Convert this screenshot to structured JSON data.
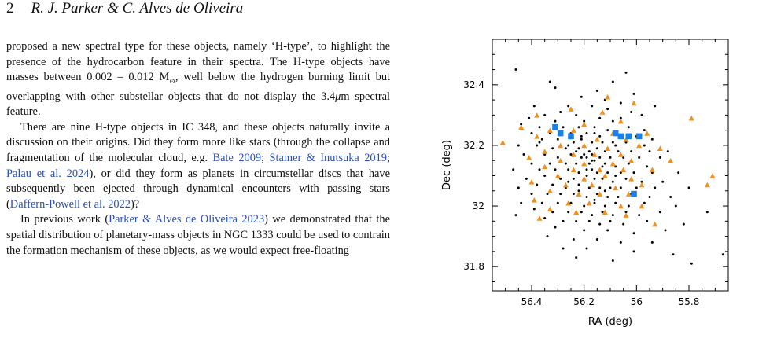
{
  "header": {
    "page_number": "2",
    "authors": "R. J. Parker & C. Alves de Oliveira"
  },
  "body": {
    "p1": [
      {
        "t": "proposed a new spectral type for these objects, namely ‘H-type’, to highlight the presence of the hydrocarbon feature in their spectra. The H-type objects have masses between 0.002 – 0.012 M"
      },
      {
        "t": "⊙",
        "sub": true
      },
      {
        "t": ", well below the hydrogen burning limit but overlapping with other substellar objects that do not display the 3.4"
      },
      {
        "t": "μ",
        "em": true
      },
      {
        "t": "m spectral feature."
      }
    ],
    "p2": [
      {
        "t": "There are nine H-type objects in IC 348, and these objects naturally invite a discussion on their origins. Did they form more like stars (through the collapse and fragmentation of the molecular cloud, e.g. "
      },
      {
        "t": "Bate 2009",
        "link": true
      },
      {
        "t": "; "
      },
      {
        "t": "Stamer & Inutsuka 2019",
        "link": true
      },
      {
        "t": "; "
      },
      {
        "t": "Palau et al. 2024",
        "link": true
      },
      {
        "t": "), or did they form as planets in circumstellar discs that have subsequently been ejected through dynamical encounters with passing stars ("
      },
      {
        "t": "Daffern-Powell et al. 2022",
        "link": true
      },
      {
        "t": ")?"
      }
    ],
    "p3": [
      {
        "t": "In previous work ("
      },
      {
        "t": "Parker & Alves de Oliveira 2023",
        "link": true
      },
      {
        "t": ") we demonstrated that the spatial distribution of planetary-mass objects in NGC 1333 could be used to contrain the formation mechanism of these objects, as we would expect free-floating"
      }
    ]
  },
  "chart_data": {
    "type": "scatter",
    "title": "",
    "xlabel": "RA (deg)",
    "ylabel": "Dec (deg)",
    "xlim": [
      56.55,
      55.65
    ],
    "ylim": [
      31.72,
      32.55
    ],
    "x_inverted": true,
    "xticks": [
      56.4,
      56.2,
      56.0,
      55.8
    ],
    "xtick_labels": [
      "56.4",
      "56.2",
      "56",
      "55.8"
    ],
    "yticks": [
      31.8,
      32.0,
      32.2,
      32.4
    ],
    "ytick_labels": [
      "31.8",
      "32",
      "32.2",
      "32.4"
    ],
    "grid": false,
    "legend": "none",
    "series": [
      {
        "marker": "dot",
        "color": "#000000",
        "points": [
          [
            56.46,
            32.45
          ],
          [
            56.33,
            32.41
          ],
          [
            56.04,
            32.44
          ],
          [
            56.09,
            32.41
          ],
          [
            56.31,
            32.39
          ],
          [
            56.15,
            32.38
          ],
          [
            56.01,
            32.37
          ],
          [
            56.21,
            32.36
          ],
          [
            56.12,
            32.35
          ],
          [
            56.06,
            32.34
          ],
          [
            56.39,
            32.33
          ],
          [
            56.26,
            32.33
          ],
          [
            56.17,
            32.33
          ],
          [
            55.93,
            32.33
          ],
          [
            56.29,
            32.31
          ],
          [
            56.11,
            32.32
          ],
          [
            56.02,
            32.31
          ],
          [
            56.41,
            32.29
          ],
          [
            56.35,
            32.3
          ],
          [
            56.23,
            32.3
          ],
          [
            56.14,
            32.29
          ],
          [
            56.06,
            32.29
          ],
          [
            55.98,
            32.3
          ],
          [
            56.31,
            32.28
          ],
          [
            56.2,
            32.28
          ],
          [
            56.09,
            32.28
          ],
          [
            56.44,
            32.27
          ],
          [
            56.37,
            32.26
          ],
          [
            56.28,
            32.26
          ],
          [
            56.22,
            32.26
          ],
          [
            56.16,
            32.26
          ],
          [
            56.11,
            32.25
          ],
          [
            56.03,
            32.26
          ],
          [
            55.97,
            32.25
          ],
          [
            56.4,
            32.24
          ],
          [
            56.33,
            32.24
          ],
          [
            56.25,
            32.24
          ],
          [
            56.19,
            32.24
          ],
          [
            56.14,
            32.23
          ],
          [
            56.06,
            32.23
          ],
          [
            56.0,
            32.23
          ],
          [
            55.94,
            32.22
          ],
          [
            56.36,
            32.22
          ],
          [
            56.3,
            32.22
          ],
          [
            56.24,
            32.21
          ],
          [
            56.21,
            32.22
          ],
          [
            56.17,
            32.21
          ],
          [
            56.13,
            32.21
          ],
          [
            56.09,
            32.21
          ],
          [
            56.04,
            32.21
          ],
          [
            55.97,
            32.2
          ],
          [
            56.45,
            32.2
          ],
          [
            56.38,
            32.2
          ],
          [
            56.32,
            32.19
          ],
          [
            56.27,
            32.19
          ],
          [
            56.22,
            32.19
          ],
          [
            56.2,
            32.2
          ],
          [
            56.18,
            32.18
          ],
          [
            56.15,
            32.19
          ],
          [
            56.11,
            32.19
          ],
          [
            56.07,
            32.18
          ],
          [
            56.02,
            32.18
          ],
          [
            55.95,
            32.18
          ],
          [
            55.88,
            32.18
          ],
          [
            56.43,
            32.17
          ],
          [
            56.35,
            32.17
          ],
          [
            56.3,
            32.16
          ],
          [
            56.25,
            32.17
          ],
          [
            56.21,
            32.16
          ],
          [
            56.19,
            32.16
          ],
          [
            56.17,
            32.17
          ],
          [
            56.14,
            32.16
          ],
          [
            56.1,
            32.16
          ],
          [
            56.05,
            32.16
          ],
          [
            55.99,
            32.16
          ],
          [
            55.91,
            32.16
          ],
          [
            56.4,
            32.14
          ],
          [
            56.33,
            32.14
          ],
          [
            56.27,
            32.14
          ],
          [
            56.23,
            32.14
          ],
          [
            56.2,
            32.14
          ],
          [
            56.18,
            32.14
          ],
          [
            56.16,
            32.15
          ],
          [
            56.12,
            32.14
          ],
          [
            56.08,
            32.13
          ],
          [
            56.03,
            32.14
          ],
          [
            55.96,
            32.13
          ],
          [
            56.47,
            32.12
          ],
          [
            56.37,
            32.12
          ],
          [
            56.31,
            32.12
          ],
          [
            56.26,
            32.12
          ],
          [
            56.22,
            32.11
          ],
          [
            56.19,
            32.12
          ],
          [
            56.17,
            32.12
          ],
          [
            56.15,
            32.11
          ],
          [
            56.11,
            32.11
          ],
          [
            56.06,
            32.11
          ],
          [
            56.01,
            32.11
          ],
          [
            55.94,
            32.11
          ],
          [
            55.84,
            32.11
          ],
          [
            56.42,
            32.09
          ],
          [
            56.35,
            32.1
          ],
          [
            56.29,
            32.09
          ],
          [
            56.24,
            32.09
          ],
          [
            56.2,
            32.09
          ],
          [
            56.16,
            32.09
          ],
          [
            56.13,
            32.09
          ],
          [
            56.09,
            32.08
          ],
          [
            56.04,
            32.09
          ],
          [
            55.98,
            32.08
          ],
          [
            55.9,
            32.08
          ],
          [
            56.45,
            32.06
          ],
          [
            56.38,
            32.07
          ],
          [
            56.32,
            32.07
          ],
          [
            56.27,
            32.06
          ],
          [
            56.22,
            32.07
          ],
          [
            56.18,
            32.06
          ],
          [
            56.14,
            32.06
          ],
          [
            56.1,
            32.06
          ],
          [
            56.06,
            32.06
          ],
          [
            56.0,
            32.06
          ],
          [
            55.93,
            32.06
          ],
          [
            55.8,
            32.06
          ],
          [
            56.4,
            32.04
          ],
          [
            56.34,
            32.04
          ],
          [
            56.29,
            32.04
          ],
          [
            56.24,
            32.04
          ],
          [
            56.19,
            32.03
          ],
          [
            56.15,
            32.04
          ],
          [
            56.11,
            32.03
          ],
          [
            56.07,
            32.03
          ],
          [
            56.02,
            32.04
          ],
          [
            55.95,
            32.03
          ],
          [
            55.87,
            32.03
          ],
          [
            56.44,
            32.01
          ],
          [
            56.36,
            32.01
          ],
          [
            56.3,
            32.01
          ],
          [
            56.25,
            32.01
          ],
          [
            56.2,
            32.0
          ],
          [
            56.16,
            32.01
          ],
          [
            56.12,
            32.0
          ],
          [
            56.08,
            32.01
          ],
          [
            56.03,
            32.0
          ],
          [
            55.97,
            32.01
          ],
          [
            55.85,
            32.0
          ],
          [
            56.39,
            31.99
          ],
          [
            56.32,
            31.98
          ],
          [
            56.26,
            31.98
          ],
          [
            56.21,
            31.98
          ],
          [
            56.17,
            31.97
          ],
          [
            56.13,
            31.98
          ],
          [
            56.09,
            31.97
          ],
          [
            56.04,
            31.98
          ],
          [
            55.99,
            31.97
          ],
          [
            55.91,
            31.98
          ],
          [
            55.73,
            31.98
          ],
          [
            56.46,
            31.97
          ],
          [
            56.35,
            31.96
          ],
          [
            56.28,
            31.95
          ],
          [
            56.23,
            31.95
          ],
          [
            56.18,
            31.95
          ],
          [
            56.14,
            31.94
          ],
          [
            56.1,
            31.95
          ],
          [
            56.05,
            31.94
          ],
          [
            55.96,
            31.95
          ],
          [
            55.82,
            31.94
          ],
          [
            56.31,
            31.93
          ],
          [
            56.2,
            31.92
          ],
          [
            56.11,
            31.92
          ],
          [
            56.01,
            31.91
          ],
          [
            55.89,
            31.92
          ],
          [
            56.34,
            31.9
          ],
          [
            56.24,
            31.89
          ],
          [
            56.15,
            31.89
          ],
          [
            56.06,
            31.88
          ],
          [
            55.94,
            31.88
          ],
          [
            56.28,
            31.86
          ],
          [
            56.19,
            31.86
          ],
          [
            56.01,
            31.85
          ],
          [
            55.86,
            31.84
          ],
          [
            56.23,
            31.83
          ],
          [
            56.09,
            31.82
          ],
          [
            55.79,
            31.81
          ],
          [
            55.67,
            31.84
          ],
          [
            56.37,
            32.21
          ],
          [
            56.26,
            32.2
          ],
          [
            56.21,
            32.23
          ],
          [
            56.16,
            32.24
          ],
          [
            56.12,
            32.18
          ],
          [
            56.08,
            32.2
          ],
          [
            56.23,
            32.18
          ],
          [
            56.2,
            32.17
          ],
          [
            56.17,
            32.15
          ],
          [
            56.19,
            32.1
          ],
          [
            56.13,
            32.13
          ],
          [
            56.26,
            32.08
          ],
          [
            56.22,
            32.05
          ],
          [
            56.16,
            32.02
          ],
          [
            56.12,
            32.05
          ],
          [
            56.08,
            32.1
          ]
        ]
      },
      {
        "marker": "triangle",
        "color": "#f0901e",
        "points": [
          [
            56.11,
            32.36
          ],
          [
            56.01,
            32.34
          ],
          [
            56.25,
            32.32
          ],
          [
            56.13,
            32.31
          ],
          [
            56.38,
            32.3
          ],
          [
            56.06,
            32.28
          ],
          [
            55.79,
            32.29
          ],
          [
            56.2,
            32.27
          ],
          [
            56.44,
            32.26
          ],
          [
            56.33,
            32.25
          ],
          [
            56.24,
            32.25
          ],
          [
            56.09,
            32.24
          ],
          [
            55.96,
            32.24
          ],
          [
            56.38,
            32.23
          ],
          [
            56.15,
            32.22
          ],
          [
            56.04,
            32.22
          ],
          [
            56.51,
            32.21
          ],
          [
            56.29,
            32.2
          ],
          [
            56.2,
            32.2
          ],
          [
            55.99,
            32.2
          ],
          [
            56.11,
            32.19
          ],
          [
            55.91,
            32.19
          ],
          [
            56.35,
            32.18
          ],
          [
            56.24,
            32.17
          ],
          [
            56.16,
            32.17
          ],
          [
            56.06,
            32.17
          ],
          [
            56.41,
            32.16
          ],
          [
            56.29,
            32.15
          ],
          [
            56.2,
            32.14
          ],
          [
            56.09,
            32.14
          ],
          [
            56.02,
            32.15
          ],
          [
            55.87,
            32.15
          ],
          [
            56.35,
            32.13
          ],
          [
            56.24,
            32.12
          ],
          [
            56.14,
            32.12
          ],
          [
            56.05,
            32.12
          ],
          [
            55.94,
            32.12
          ],
          [
            56.3,
            32.1
          ],
          [
            56.2,
            32.09
          ],
          [
            56.12,
            32.1
          ],
          [
            56.02,
            32.09
          ],
          [
            55.71,
            32.1
          ],
          [
            56.4,
            32.08
          ],
          [
            56.27,
            32.07
          ],
          [
            56.17,
            32.07
          ],
          [
            56.08,
            32.06
          ],
          [
            55.98,
            32.07
          ],
          [
            55.73,
            32.07
          ],
          [
            56.33,
            32.05
          ],
          [
            56.22,
            32.04
          ],
          [
            56.14,
            32.04
          ],
          [
            56.03,
            32.04
          ],
          [
            56.39,
            32.02
          ],
          [
            56.26,
            32.01
          ],
          [
            56.18,
            32.01
          ],
          [
            56.06,
            32.0
          ],
          [
            55.98,
            32.0
          ],
          [
            56.33,
            31.99
          ],
          [
            56.23,
            31.98
          ],
          [
            56.12,
            31.98
          ],
          [
            56.04,
            31.97
          ],
          [
            56.37,
            31.96
          ],
          [
            55.93,
            31.94
          ]
        ]
      },
      {
        "marker": "square",
        "color": "#1a7fe6",
        "points": [
          [
            56.31,
            32.26
          ],
          [
            56.29,
            32.24
          ],
          [
            56.25,
            32.23
          ],
          [
            56.08,
            32.24
          ],
          [
            56.06,
            32.23
          ],
          [
            56.03,
            32.23
          ],
          [
            55.99,
            32.23
          ],
          [
            56.01,
            32.04
          ]
        ]
      }
    ]
  }
}
